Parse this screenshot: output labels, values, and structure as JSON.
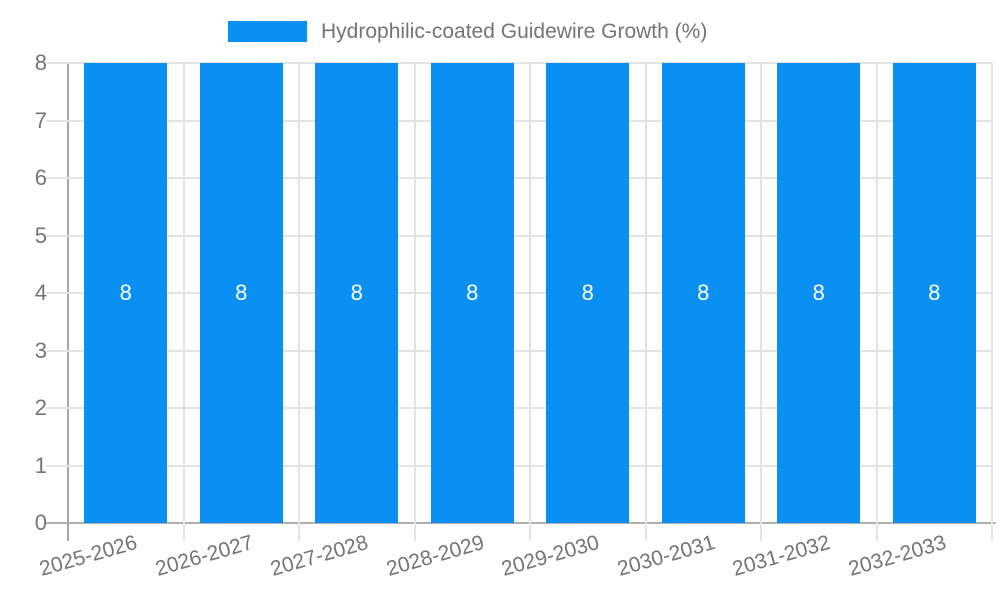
{
  "legend": {
    "label": "Hydrophilic-coated Guidewire Growth (%)"
  },
  "chart_data": {
    "type": "bar",
    "title": "Hydrophilic-coated Guidewire Growth (%)",
    "categories": [
      "2025-2026",
      "2026-2027",
      "2027-2028",
      "2028-2029",
      "2029-2030",
      "2030-2031",
      "2031-2032",
      "2032-2033"
    ],
    "series": [
      {
        "name": "Hydrophilic-coated Guidewire Growth (%)",
        "values": [
          8,
          8,
          8,
          8,
          8,
          8,
          8,
          8
        ]
      }
    ],
    "value_labels_shown": true,
    "xlabel": "",
    "ylabel": "",
    "ylim": [
      0,
      8
    ],
    "yticks": [
      0,
      1,
      2,
      3,
      4,
      5,
      6,
      7,
      8
    ],
    "grid": true,
    "legend_position": "top"
  },
  "colors": {
    "bar": "#0a8ff2",
    "gridline": "#e3e3e3",
    "axis_y": "#a6a6a6",
    "axis_x": "#b0b0b0",
    "text": "#757575",
    "bar_label_text": "#ffffff",
    "background": "#ffffff"
  }
}
